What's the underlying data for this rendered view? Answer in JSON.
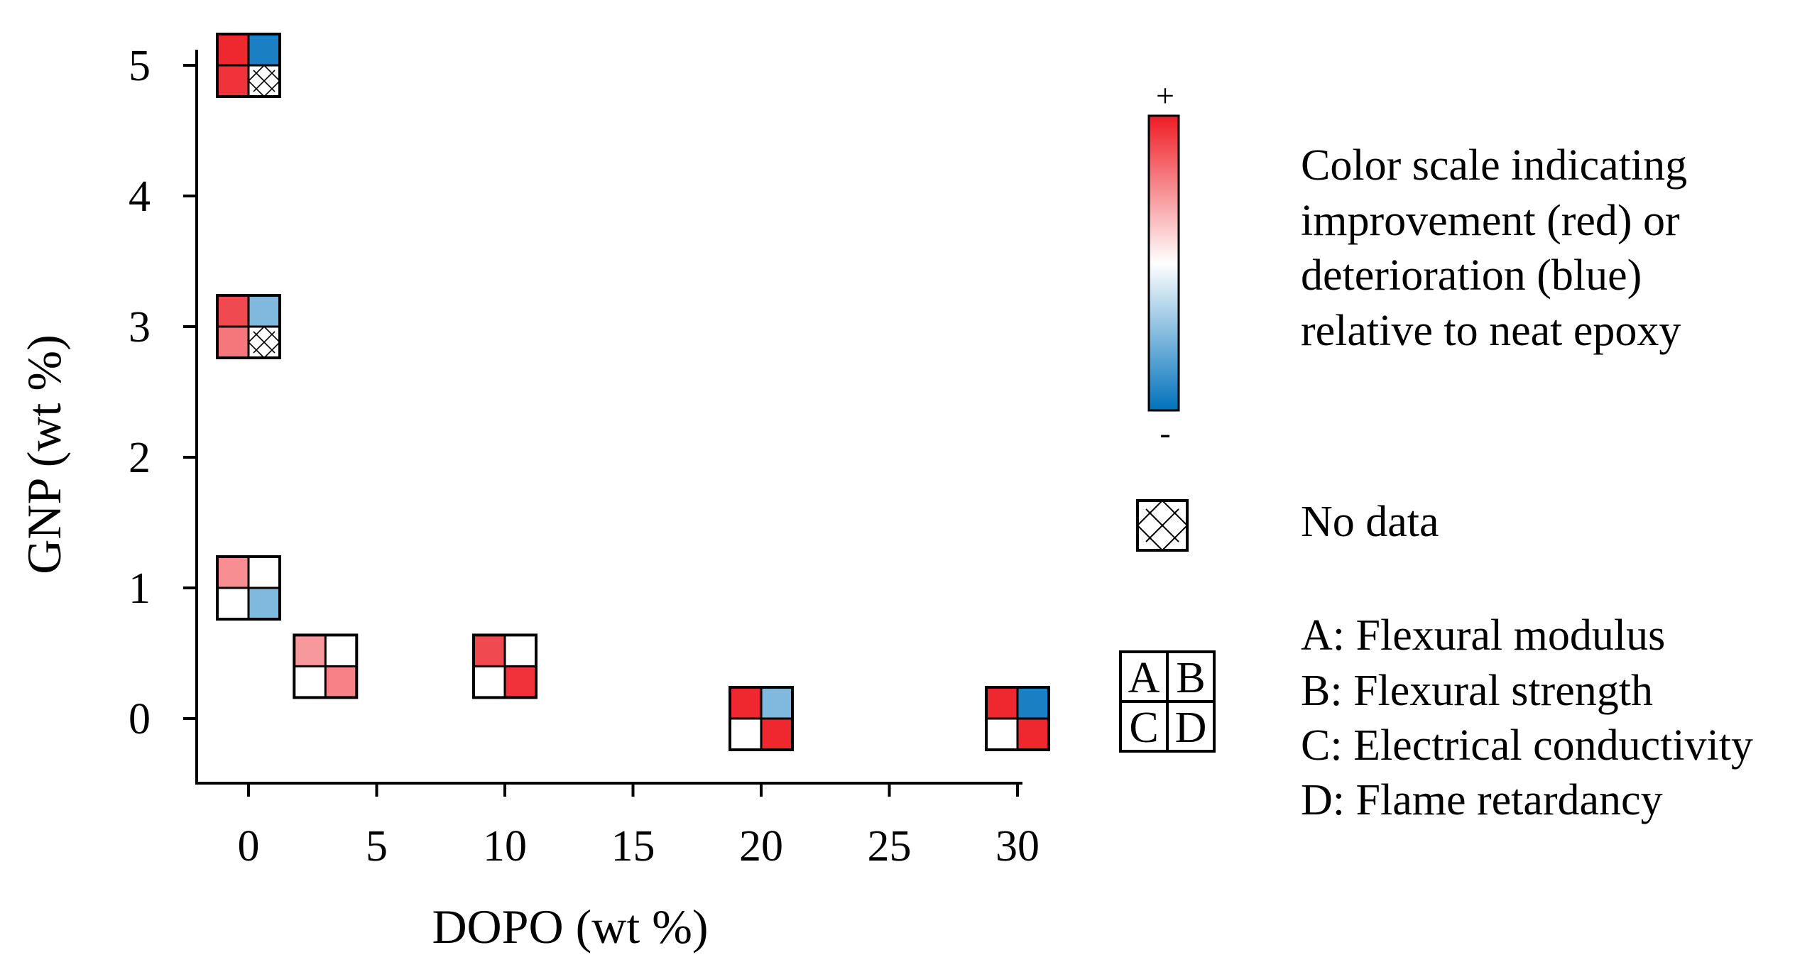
{
  "chart_data": {
    "type": "heatmap",
    "xlabel": "DOPO (wt %)",
    "ylabel": "GNP (wt %)",
    "xlim": [
      -2,
      30
    ],
    "ylim": [
      -0.5,
      5
    ],
    "x_ticks": [
      "0",
      "5",
      "10",
      "15",
      "20",
      "25",
      "30"
    ],
    "y_ticks": [
      "0",
      "1",
      "2",
      "3",
      "4",
      "5"
    ],
    "quadrant_order": [
      "A",
      "B",
      "C",
      "D"
    ],
    "scale": {
      "min": -1,
      "max": 1
    },
    "points": [
      {
        "dopo": 0,
        "gnp": 5,
        "A": 0.95,
        "B": -0.9,
        "C": 0.9,
        "D": null
      },
      {
        "dopo": 0,
        "gnp": 3,
        "A": 0.8,
        "B": -0.5,
        "C": 0.6,
        "D": null
      },
      {
        "dopo": 0,
        "gnp": 1,
        "A": 0.5,
        "B": 0,
        "C": 0,
        "D": -0.5
      },
      {
        "dopo": 3,
        "gnp": 0.4,
        "A": 0.45,
        "B": 0,
        "C": 0,
        "D": 0.55
      },
      {
        "dopo": 10,
        "gnp": 0.4,
        "A": 0.8,
        "B": 0,
        "C": 0,
        "D": 0.9
      },
      {
        "dopo": 20,
        "gnp": 0,
        "A": 0.95,
        "B": -0.5,
        "C": 0,
        "D": 0.95
      },
      {
        "dopo": 30,
        "gnp": 0,
        "A": 0.95,
        "B": -0.9,
        "C": 0,
        "D": 0.95
      }
    ],
    "colors": {
      "positive": "#ee1c24",
      "neutral": "#ffffff",
      "negative": "#0072bc",
      "line": "#000000"
    }
  },
  "legend": {
    "plus": "+",
    "minus": "-",
    "scale_lines": [
      "Color scale indicating",
      "improvement (red) or",
      "deterioration (blue)",
      "relative to neat epoxy"
    ],
    "no_data": "No data",
    "key_letters": [
      "A",
      "B",
      "C",
      "D"
    ],
    "key_lines": [
      "A: Flexural modulus",
      "B: Flexural strength",
      "C: Electrical conductivity",
      "D: Flame retardancy"
    ]
  }
}
